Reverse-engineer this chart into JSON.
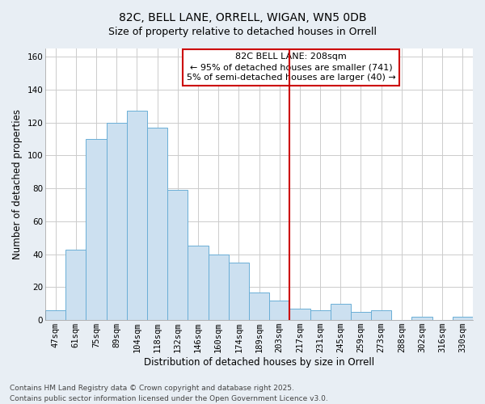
{
  "title": "82C, BELL LANE, ORRELL, WIGAN, WN5 0DB",
  "subtitle": "Size of property relative to detached houses in Orrell",
  "xlabel": "Distribution of detached houses by size in Orrell",
  "ylabel": "Number of detached properties",
  "bar_labels": [
    "47sqm",
    "61sqm",
    "75sqm",
    "89sqm",
    "104sqm",
    "118sqm",
    "132sqm",
    "146sqm",
    "160sqm",
    "174sqm",
    "189sqm",
    "203sqm",
    "217sqm",
    "231sqm",
    "245sqm",
    "259sqm",
    "273sqm",
    "288sqm",
    "302sqm",
    "316sqm",
    "330sqm"
  ],
  "bar_values": [
    6,
    43,
    110,
    120,
    127,
    117,
    79,
    45,
    40,
    35,
    17,
    12,
    7,
    6,
    10,
    5,
    6,
    0,
    2,
    0,
    2
  ],
  "bar_color": "#cce0f0",
  "bar_edge_color": "#6aaed6",
  "vline_x_bar_idx": 12,
  "vline_color": "#cc0000",
  "annotation_title": "82C BELL LANE: 208sqm",
  "annotation_line1": "← 95% of detached houses are smaller (741)",
  "annotation_line2": "5% of semi-detached houses are larger (40) →",
  "ylim": [
    0,
    165
  ],
  "yticks": [
    0,
    20,
    40,
    60,
    80,
    100,
    120,
    140,
    160
  ],
  "footnote1": "Contains HM Land Registry data © Crown copyright and database right 2025.",
  "footnote2": "Contains public sector information licensed under the Open Government Licence v3.0.",
  "plot_bg_color": "#ffffff",
  "fig_bg_color": "#e8eef4",
  "grid_color": "#cccccc",
  "title_fontsize": 10,
  "axis_label_fontsize": 8.5,
  "tick_fontsize": 7.5,
  "footnote_fontsize": 6.5,
  "annot_fontsize": 8
}
